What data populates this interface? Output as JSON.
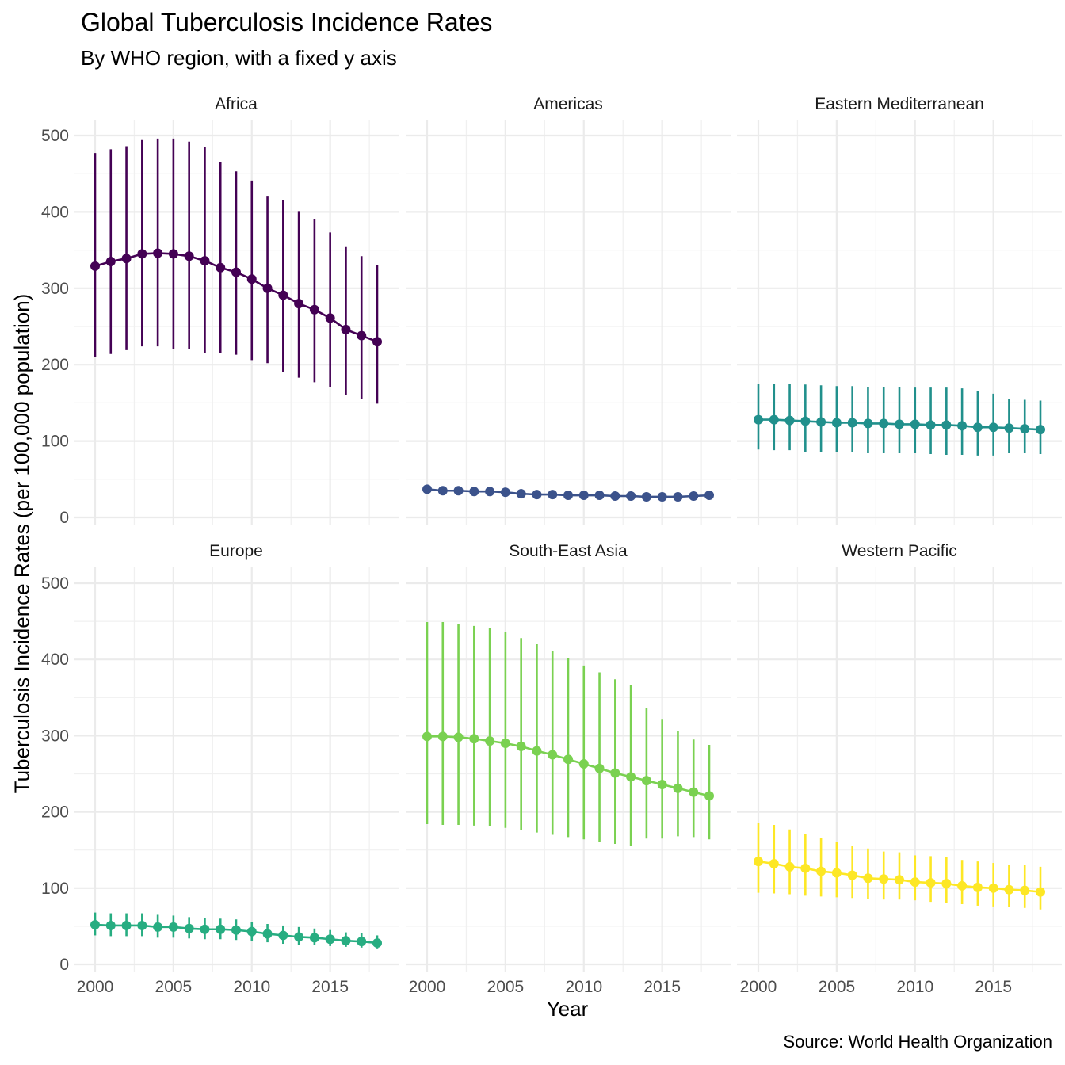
{
  "chart_data": {
    "type": "line",
    "title": "Global Tuberculosis Incidence Rates",
    "subtitle": "By WHO region, with a fixed y axis",
    "caption": "Source: World Health Organization",
    "xlabel": "Year",
    "ylabel": "Tuberculosis Incidence Rates (per 100,000 population)",
    "xlim": [
      2000,
      2018
    ],
    "ylim": [
      0,
      500
    ],
    "x_ticks": [
      "2000",
      "2005",
      "2010",
      "2015"
    ],
    "y_ticks": [
      "0",
      "100",
      "200",
      "300",
      "400",
      "500"
    ],
    "grid": true,
    "facet_layout": "2 rows x 3 columns",
    "x": [
      2000,
      2001,
      2002,
      2003,
      2004,
      2005,
      2006,
      2007,
      2008,
      2009,
      2010,
      2011,
      2012,
      2013,
      2014,
      2015,
      2016,
      2017,
      2018
    ],
    "series": [
      {
        "name": "Africa",
        "color": "#440154",
        "values": [
          329,
          335,
          339,
          345,
          346,
          345,
          342,
          336,
          327,
          321,
          312,
          300,
          291,
          280,
          272,
          261,
          246,
          238,
          230
        ],
        "lower": [
          210,
          214,
          219,
          224,
          224,
          221,
          220,
          215,
          215,
          213,
          206,
          202,
          190,
          183,
          177,
          171,
          160,
          155,
          149
        ],
        "upper": [
          477,
          482,
          486,
          494,
          496,
          496,
          492,
          485,
          465,
          453,
          441,
          421,
          415,
          401,
          390,
          373,
          354,
          342,
          330
        ]
      },
      {
        "name": "Americas",
        "color": "#3B528B",
        "values": [
          37,
          35,
          35,
          34,
          34,
          33,
          31,
          30,
          30,
          29,
          29,
          29,
          28,
          28,
          27,
          27,
          27,
          28,
          29
        ],
        "lower": [
          31,
          30,
          30,
          29,
          29,
          28,
          27,
          26,
          26,
          25,
          25,
          25,
          24,
          24,
          23,
          23,
          23,
          24,
          25
        ],
        "upper": [
          43,
          41,
          41,
          40,
          40,
          39,
          37,
          35,
          35,
          34,
          34,
          34,
          33,
          33,
          32,
          32,
          32,
          33,
          34
        ]
      },
      {
        "name": "Eastern Mediterranean",
        "color": "#21908C",
        "values": [
          128,
          128,
          127,
          126,
          125,
          124,
          124,
          123,
          123,
          122,
          122,
          121,
          121,
          120,
          118,
          118,
          117,
          116,
          115
        ],
        "lower": [
          89,
          88,
          88,
          86,
          85,
          85,
          85,
          84,
          84,
          84,
          84,
          83,
          82,
          82,
          81,
          81,
          84,
          84,
          83
        ],
        "upper": [
          175,
          175,
          175,
          174,
          173,
          172,
          172,
          171,
          171,
          171,
          170,
          170,
          170,
          169,
          166,
          162,
          155,
          154,
          153
        ]
      },
      {
        "name": "Europe",
        "color": "#27AD81",
        "values": [
          52,
          51,
          51,
          51,
          49,
          49,
          47,
          46,
          46,
          45,
          43,
          40,
          38,
          36,
          35,
          33,
          31,
          30,
          28
        ],
        "lower": [
          38,
          37,
          37,
          37,
          35,
          35,
          34,
          33,
          33,
          32,
          31,
          29,
          27,
          26,
          25,
          24,
          23,
          22,
          21
        ],
        "upper": [
          68,
          67,
          67,
          67,
          65,
          64,
          62,
          61,
          60,
          59,
          56,
          53,
          51,
          49,
          47,
          45,
          42,
          41,
          38
        ]
      },
      {
        "name": "South-East Asia",
        "color": "#7AD151",
        "values": [
          299,
          299,
          298,
          296,
          293,
          290,
          286,
          280,
          275,
          269,
          263,
          257,
          251,
          246,
          241,
          236,
          231,
          226,
          221
        ],
        "lower": [
          184,
          183,
          183,
          182,
          181,
          179,
          176,
          173,
          170,
          167,
          164,
          161,
          158,
          155,
          165,
          165,
          168,
          167,
          164
        ],
        "upper": [
          449,
          449,
          447,
          444,
          441,
          436,
          428,
          420,
          411,
          402,
          392,
          383,
          374,
          366,
          336,
          322,
          306,
          295,
          288
        ]
      },
      {
        "name": "Western Pacific",
        "color": "#FDE725",
        "values": [
          135,
          132,
          128,
          126,
          122,
          120,
          117,
          113,
          112,
          111,
          108,
          107,
          106,
          103,
          101,
          100,
          98,
          97,
          95
        ],
        "lower": [
          94,
          93,
          92,
          90,
          89,
          88,
          87,
          86,
          85,
          85,
          84,
          82,
          81,
          79,
          77,
          76,
          75,
          74,
          72
        ],
        "upper": [
          186,
          183,
          177,
          171,
          166,
          161,
          155,
          152,
          148,
          147,
          143,
          142,
          141,
          137,
          135,
          133,
          131,
          130,
          128
        ]
      }
    ]
  }
}
